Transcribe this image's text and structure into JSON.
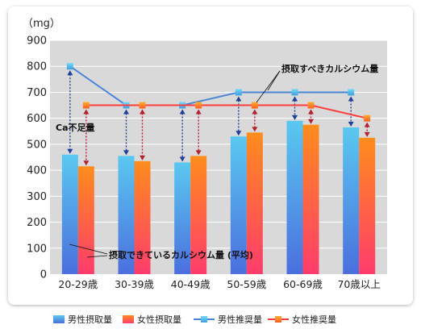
{
  "chart_data": {
    "type": "bar",
    "unit_label": "（mg）",
    "categories": [
      "20-29歳",
      "30-39歳",
      "40-49歳",
      "50-59歳",
      "60-69歳",
      "70歳以上"
    ],
    "ylim": [
      0,
      900
    ],
    "yticks": [
      0,
      100,
      200,
      300,
      400,
      500,
      600,
      700,
      800,
      900
    ],
    "grid": true,
    "legend_position": "bottom",
    "series": [
      {
        "name": "男性摂取量",
        "kind": "bar",
        "color_top": "#5ac8f0",
        "color_bottom": "#4b6fde",
        "arrow_color": "#1f3f9a",
        "values": [
          460,
          455,
          430,
          530,
          590,
          565
        ]
      },
      {
        "name": "女性摂取量",
        "kind": "bar",
        "color_top": "#ff8c1c",
        "color_bottom": "#ff3c6c",
        "arrow_color": "#b3202f",
        "values": [
          415,
          435,
          455,
          545,
          575,
          525
        ]
      },
      {
        "name": "男性推奨量",
        "kind": "line",
        "color": "#4a86d8",
        "marker_top": "#72d8f8",
        "marker_bottom": "#3c9fe0",
        "values": [
          800,
          650,
          650,
          700,
          700,
          700
        ]
      },
      {
        "name": "女性推奨量",
        "kind": "line",
        "color": "#ff3b3b",
        "marker_top": "#ffb030",
        "marker_bottom": "#ff5a1e",
        "values": [
          650,
          650,
          650,
          650,
          650,
          600
        ]
      }
    ],
    "annotations": {
      "shortage": "Ca不足量",
      "recommended": "摂取すべきカルシウム量",
      "intake": "摂取できているカルシウム量 (平均)"
    }
  }
}
